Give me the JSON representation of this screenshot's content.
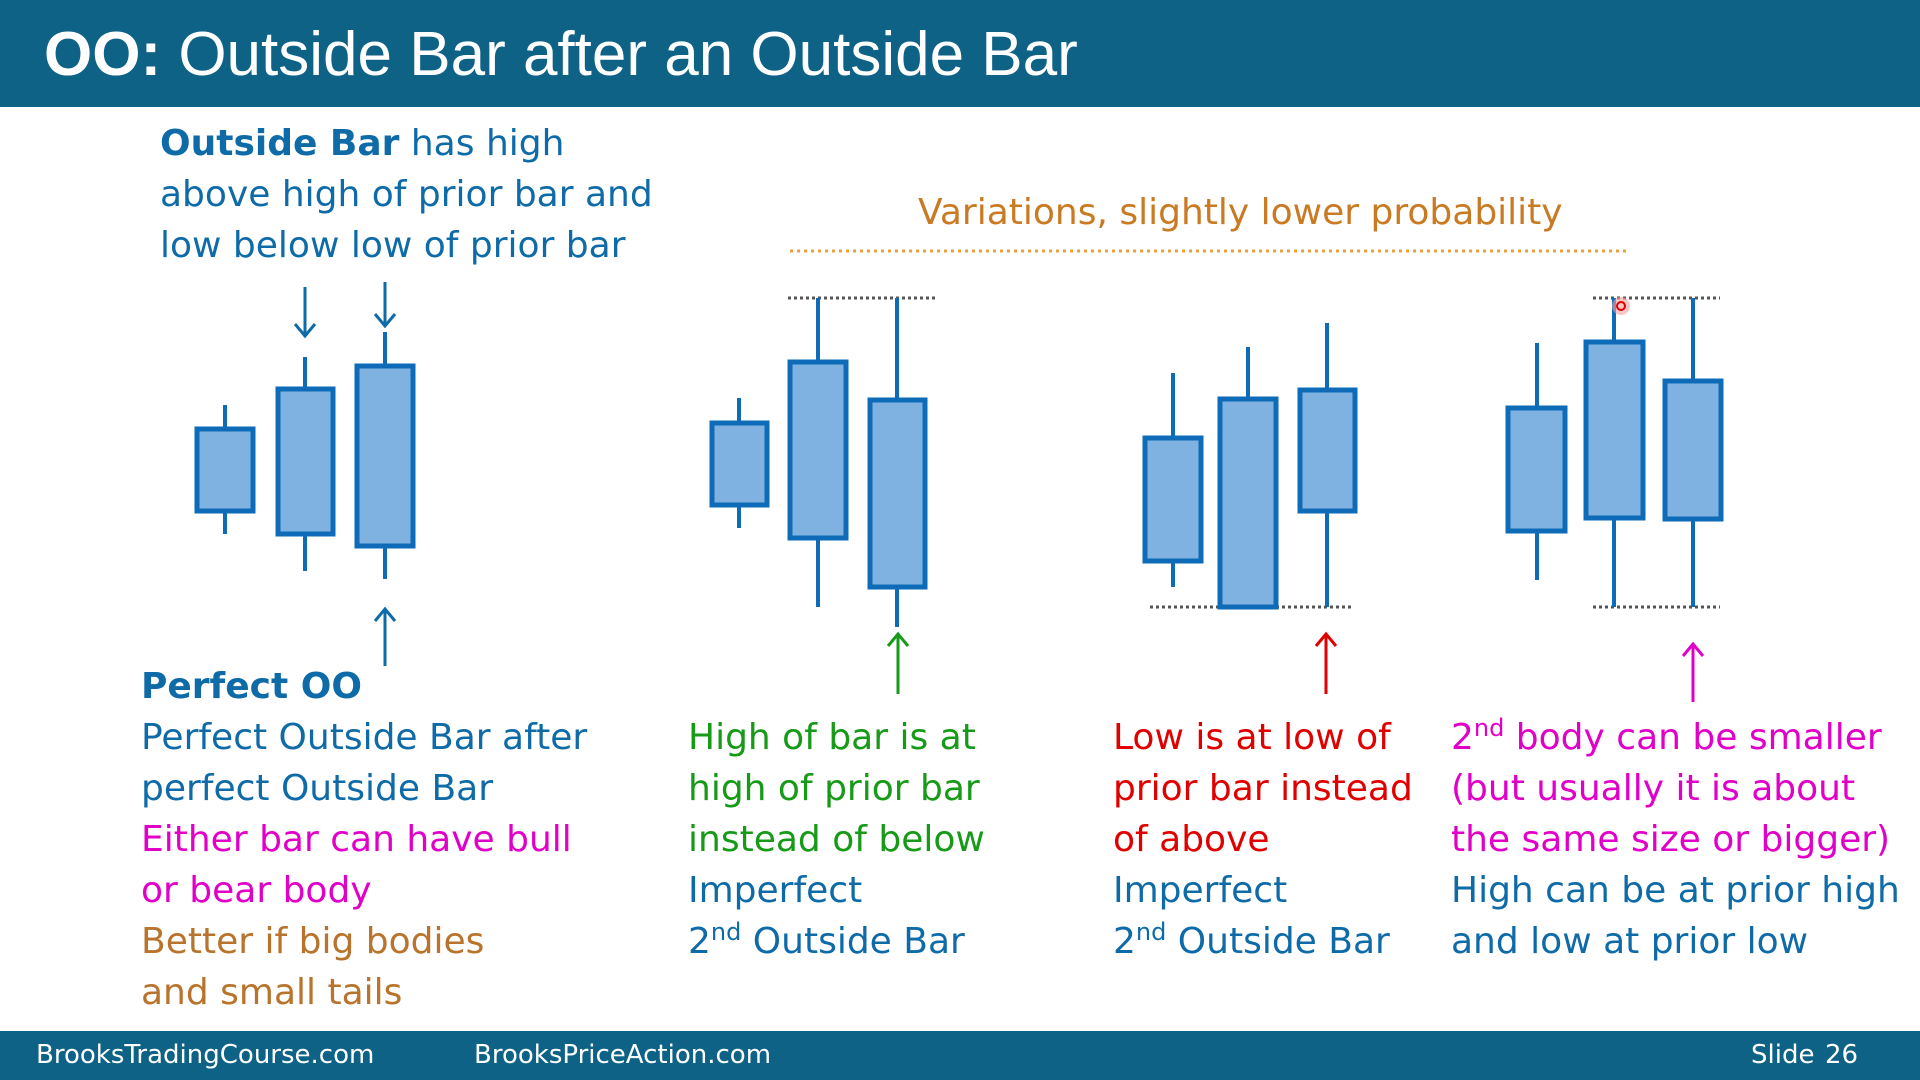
{
  "header": {
    "title_prefix": "OO:",
    "title_rest": " Outside Bar after an Outside Bar"
  },
  "definition": {
    "term": "Outside Bar",
    "line1_rest": " has high",
    "line2": "above high of prior bar and",
    "line3": "low below low of prior bar"
  },
  "variations_heading": "Variations, slightly lower probability",
  "perfect": {
    "heading": "Perfect OO",
    "line1": "Perfect Outside Bar after",
    "line2": "perfect Outside Bar",
    "line3": "Either bar can have bull",
    "line4": "or bear body",
    "line5": "Better if big bodies",
    "line6": "and small tails"
  },
  "variation1": {
    "line1": "High of bar is at",
    "line2": "high of prior bar",
    "line3": "instead of below",
    "line4": "Imperfect",
    "line5_num": "2",
    "line5_sup": "nd",
    "line5_rest": " Outside Bar"
  },
  "variation2": {
    "line1": "Low is at low of",
    "line2": "prior bar instead",
    "line3": "of above",
    "line4": "Imperfect",
    "line5_num": "2",
    "line5_sup": "nd",
    "line5_rest": " Outside Bar"
  },
  "variation3": {
    "line1_num": "2",
    "line1_sup": "nd",
    "line1_rest": " body can be smaller",
    "line2": "(but usually it is about",
    "line3": "the same size or bigger)",
    "line4": "High can be at prior high",
    "line5": "and low at prior low"
  },
  "footer": {
    "site1": "BrooksTradingCourse.com",
    "site2": "BrooksPriceAction.com",
    "slide_label": "Slide",
    "slide_number": "26"
  },
  "colors": {
    "header_bg": "#0E6286",
    "candle_fill": "#7FB2E0",
    "candle_stroke": "#0E6BB8",
    "arrow_blue": "#0E6BA8",
    "arrow_green": "#169A17",
    "arrow_red": "#E00000",
    "arrow_magenta": "#E000C8",
    "dotted_orange": "#E8A040",
    "dotted_gray": "#555555"
  }
}
